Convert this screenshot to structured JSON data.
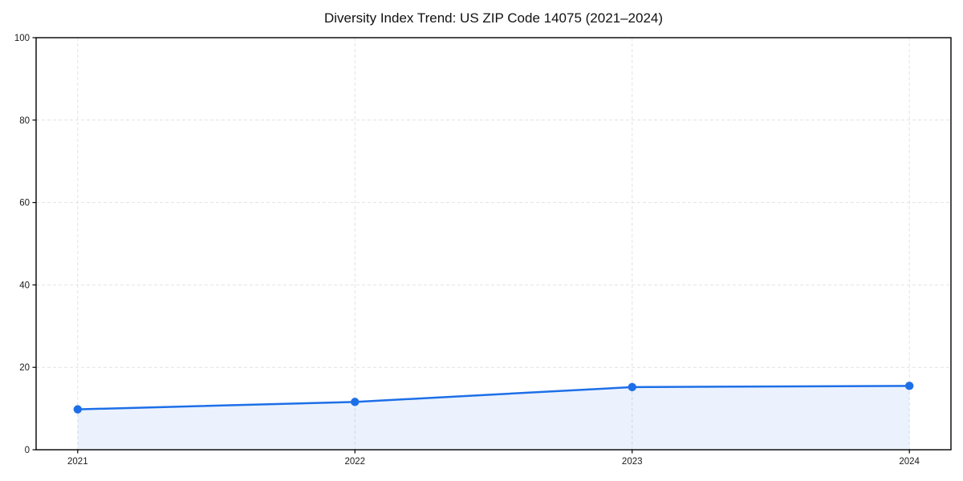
{
  "chart_data": {
    "type": "area",
    "title": "Diversity Index Trend: US ZIP Code 14075 (2021–2024)",
    "xlabel": "",
    "ylabel": "",
    "x": [
      2021,
      2022,
      2023,
      2024
    ],
    "series": [
      {
        "name": "Diversity Index",
        "values": [
          9.8,
          11.6,
          15.2,
          15.5
        ]
      }
    ],
    "xticks": [
      2021,
      2022,
      2023,
      2024
    ],
    "xtick_labels": [
      "2021",
      "2022",
      "2023",
      "2024"
    ],
    "yticks": [
      0,
      20,
      40,
      60,
      80,
      100
    ],
    "ytick_labels": [
      "0",
      "20",
      "40",
      "60",
      "80",
      "100"
    ],
    "ylim": [
      0,
      100
    ],
    "x_margin_frac": 0.05,
    "grid": "dashed",
    "legend_position": "none",
    "colors": {
      "line": "#1d6fe8",
      "marker": "#1d6fe8",
      "fill": "#1d6fe8",
      "fill_opacity": 0.09,
      "grid": "#e2e2e2",
      "axis": "#000000",
      "text": "#1a1a1a",
      "background": "#ffffff"
    }
  }
}
